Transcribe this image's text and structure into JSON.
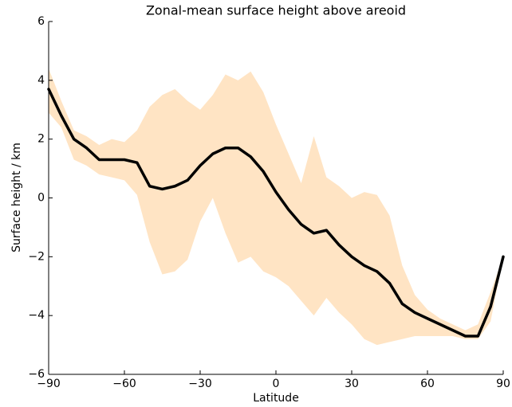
{
  "chart_data": {
    "type": "line",
    "title": "Zonal-mean surface height above areoid",
    "xlabel": "Latitude",
    "ylabel": "Surface height / km",
    "x": [
      -90,
      -85,
      -80,
      -75,
      -70,
      -65,
      -60,
      -55,
      -50,
      -45,
      -40,
      -35,
      -30,
      -25,
      -20,
      -15,
      -10,
      -5,
      0,
      5,
      10,
      15,
      20,
      25,
      30,
      35,
      40,
      45,
      50,
      55,
      60,
      65,
      70,
      75,
      80,
      85,
      90
    ],
    "values": [
      3.7,
      2.8,
      2.0,
      1.7,
      1.3,
      1.3,
      1.3,
      1.2,
      0.4,
      0.3,
      0.4,
      0.6,
      1.1,
      1.5,
      1.7,
      1.7,
      1.4,
      0.9,
      0.2,
      -0.4,
      -0.9,
      -1.2,
      -1.1,
      -1.6,
      -2.0,
      -2.3,
      -2.5,
      -2.9,
      -3.6,
      -3.9,
      -4.1,
      -4.3,
      -4.5,
      -4.7,
      -4.7,
      -3.7,
      -2.0
    ],
    "color": "#000000",
    "band": {
      "color": "#ffe4c4",
      "upper": [
        4.4,
        3.3,
        2.3,
        2.1,
        1.8,
        2.0,
        1.9,
        2.3,
        3.1,
        3.5,
        3.7,
        3.3,
        3.0,
        3.5,
        4.2,
        4.0,
        4.3,
        3.6,
        2.5,
        1.5,
        0.5,
        2.1,
        0.7,
        0.4,
        0.0,
        0.2,
        0.1,
        -0.6,
        -2.3,
        -3.3,
        -3.8,
        -4.1,
        -4.3,
        -4.5,
        -4.3,
        -3.2,
        -2.0
      ],
      "lower": [
        2.9,
        2.4,
        1.3,
        1.1,
        0.8,
        0.7,
        0.6,
        0.1,
        -1.5,
        -2.6,
        -2.5,
        -2.1,
        -0.8,
        0.0,
        -1.2,
        -2.2,
        -2.0,
        -2.5,
        -2.7,
        -3.0,
        -3.5,
        -4.0,
        -3.4,
        -3.9,
        -4.3,
        -4.8,
        -5.0,
        -4.9,
        -4.8,
        -4.7,
        -4.7,
        -4.7,
        -4.7,
        -4.8,
        -4.8,
        -4.2,
        -2.0
      ]
    },
    "xlim": [
      -90,
      90
    ],
    "xticks": [
      {
        "value": -90,
        "label": "−90"
      },
      {
        "value": -60,
        "label": "−60"
      },
      {
        "value": -30,
        "label": "−30"
      },
      0,
      30,
      60,
      90
    ],
    "ylim": [
      -6,
      6
    ],
    "yticks": [
      {
        "value": -6,
        "label": "−6"
      },
      {
        "value": -4,
        "label": "−4"
      },
      {
        "value": -2,
        "label": "−2"
      },
      0,
      2,
      4,
      6
    ],
    "grid": false
  }
}
